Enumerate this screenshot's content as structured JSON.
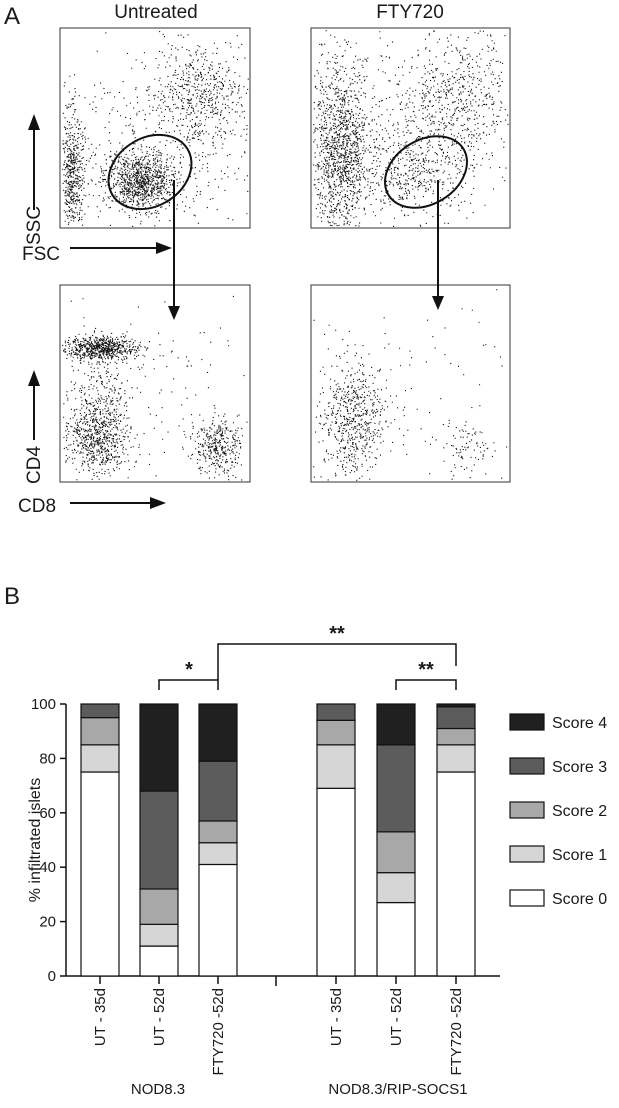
{
  "panel_a": {
    "letter": "A",
    "plots": [
      {
        "title": "Untreated"
      },
      {
        "title": "FTY720"
      }
    ],
    "labels": {
      "ssc": "SSC",
      "fsc": "FSC",
      "cd4": "CD4",
      "cd8": "CD8"
    }
  },
  "panel_b": {
    "letter": "B",
    "significance": [
      {
        "text": "*"
      },
      {
        "text": "**"
      },
      {
        "text": "**"
      }
    ]
  },
  "colors": {
    "score4": "#202020",
    "score3": "#5c5c5c",
    "score2": "#a8a8a8",
    "score1": "#d6d6d6",
    "score0": "#ffffff"
  },
  "chart_data": [
    {
      "type": "scatter",
      "title": "Untreated",
      "xlabel": "FSC",
      "ylabel": "SSC",
      "description_of_points": "flow cytometry dot plot, gated lymphocyte population"
    },
    {
      "type": "scatter",
      "title": "FTY720",
      "xlabel": "FSC",
      "ylabel": "SSC"
    },
    {
      "type": "scatter",
      "title": "",
      "xlabel": "CD8",
      "ylabel": "CD4"
    },
    {
      "type": "scatter",
      "title": "",
      "xlabel": "CD8",
      "ylabel": "CD4"
    },
    {
      "type": "bar",
      "stacked": true,
      "ylabel": "% infiltrated islets",
      "ylim": [
        0,
        100
      ],
      "yticks": [
        0,
        20,
        40,
        60,
        80,
        100
      ],
      "categories": [
        "UT - 35d",
        "UT - 52d",
        "FTY720 -52d",
        "UT - 35d",
        "UT - 52d",
        "FTY720 -52d"
      ],
      "groups": [
        {
          "name": "NOD8.3",
          "categories": [
            0,
            1,
            2
          ]
        },
        {
          "name": "NOD8.3/RIP-SOCS1",
          "categories": [
            3,
            4,
            5
          ]
        }
      ],
      "series": [
        {
          "name": "Score 0",
          "values": [
            75,
            11,
            41,
            69,
            27,
            75
          ]
        },
        {
          "name": "Score 1",
          "values": [
            10,
            8,
            8,
            16,
            11,
            10
          ]
        },
        {
          "name": "Score 2",
          "values": [
            10,
            13,
            8,
            9,
            15,
            6
          ]
        },
        {
          "name": "Score 3",
          "values": [
            5,
            36,
            22,
            6,
            32,
            8
          ]
        },
        {
          "name": "Score 4",
          "values": [
            0,
            32,
            21,
            0,
            15,
            1
          ]
        }
      ],
      "legend": [
        "Score 4",
        "Score 3",
        "Score 2",
        "Score 1",
        "Score 0"
      ],
      "legend_position": "right",
      "annotations": [
        "*",
        "**",
        "**"
      ]
    }
  ]
}
